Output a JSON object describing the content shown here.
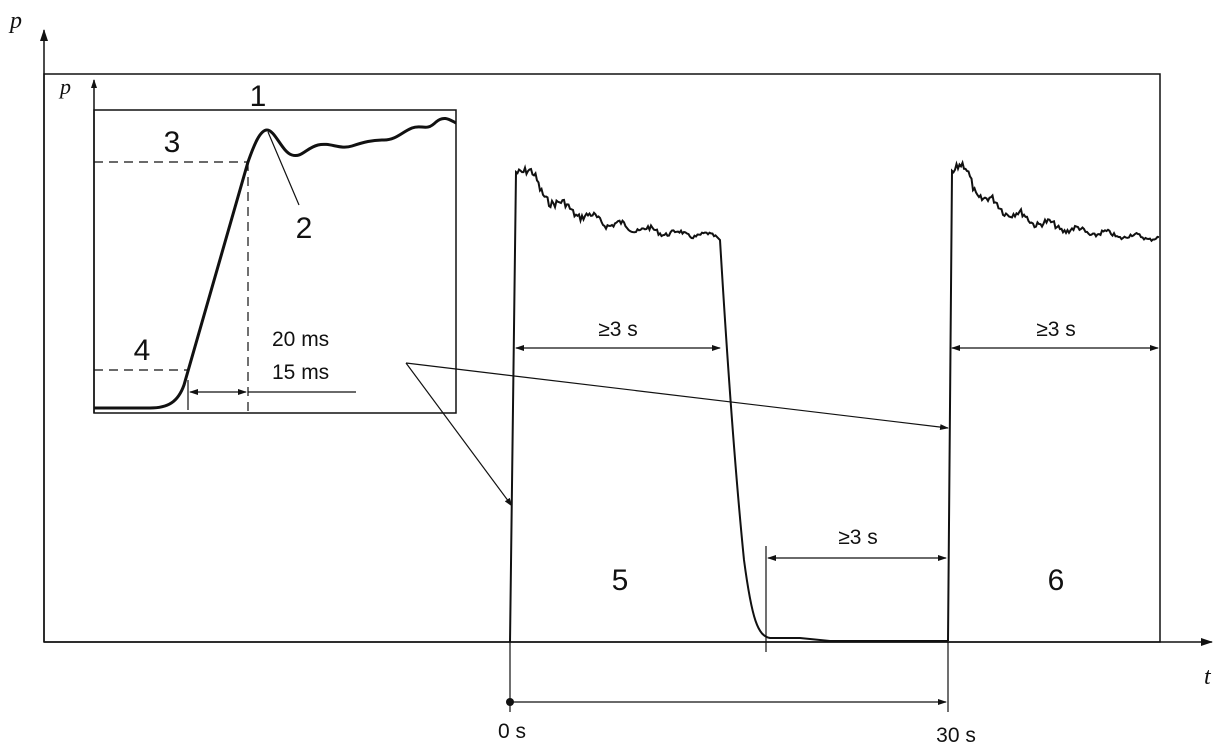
{
  "axes": {
    "main_y_label": "p",
    "main_x_label": "t",
    "inset_y_label": "p"
  },
  "callouts": {
    "c1": "1",
    "c2": "2",
    "c3": "3",
    "c4": "4",
    "c5": "5",
    "c6": "6"
  },
  "inset": {
    "time_20": "20 ms",
    "time_15": "15 ms"
  },
  "durations": {
    "pulse1": "≥3 s",
    "pause": "≥3 s",
    "pulse2": "≥3 s"
  },
  "ticks": {
    "t0": "0 s",
    "t30": "30 s"
  },
  "colors": {
    "ink": "#111111",
    "background": "#ffffff"
  }
}
